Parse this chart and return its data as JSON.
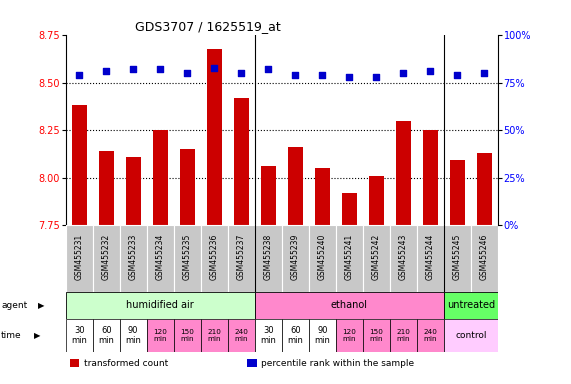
{
  "title": "GDS3707 / 1625519_at",
  "samples": [
    "GSM455231",
    "GSM455232",
    "GSM455233",
    "GSM455234",
    "GSM455235",
    "GSM455236",
    "GSM455237",
    "GSM455238",
    "GSM455239",
    "GSM455240",
    "GSM455241",
    "GSM455242",
    "GSM455243",
    "GSM455244",
    "GSM455245",
    "GSM455246"
  ],
  "bar_values": [
    8.38,
    8.14,
    8.11,
    8.25,
    8.15,
    8.68,
    8.42,
    8.06,
    8.16,
    8.05,
    7.92,
    8.01,
    8.3,
    8.25,
    8.09,
    8.13
  ],
  "percentile_values": [
    79,
    81,
    82,
    82,
    80,
    83,
    80,
    82,
    79,
    79,
    78,
    78,
    80,
    81,
    79,
    80
  ],
  "bar_color": "#cc0000",
  "dot_color": "#0000cc",
  "ylim_left": [
    7.75,
    8.75
  ],
  "ylim_right": [
    0,
    100
  ],
  "yticks_left": [
    7.75,
    8.0,
    8.25,
    8.5,
    8.75
  ],
  "yticks_right": [
    0,
    25,
    50,
    75,
    100
  ],
  "grid_values": [
    8.0,
    8.25,
    8.5
  ],
  "agent_labels": [
    {
      "label": "humidified air",
      "start": 0,
      "end": 7,
      "color": "#ccffcc"
    },
    {
      "label": "ethanol",
      "start": 7,
      "end": 14,
      "color": "#ff88cc"
    },
    {
      "label": "untreated",
      "start": 14,
      "end": 16,
      "color": "#66ff66"
    }
  ],
  "time_labels": [
    "30\nmin",
    "60\nmin",
    "90\nmin",
    "120\nmin",
    "150\nmin",
    "210\nmin",
    "240\nmin",
    "30\nmin",
    "60\nmin",
    "90\nmin",
    "120\nmin",
    "150\nmin",
    "210\nmin",
    "240\nmin"
  ],
  "time_colors_white": [
    0,
    1,
    2,
    7,
    8,
    9
  ],
  "time_colors_pink": [
    3,
    4,
    5,
    6,
    10,
    11,
    12,
    13
  ],
  "time_pink": "#ff88cc",
  "time_white": "#ffffff",
  "control_label": "control",
  "control_color": "#ffccff",
  "names_bg": "#c8c8c8",
  "names_border": "#ffffff",
  "background_color": "#ffffff",
  "plot_bg": "#ffffff",
  "sep_color": "#000000",
  "legend_text1": "transformed count",
  "legend_text2": "percentile rank within the sample",
  "label_agent": "agent",
  "label_time": "time"
}
